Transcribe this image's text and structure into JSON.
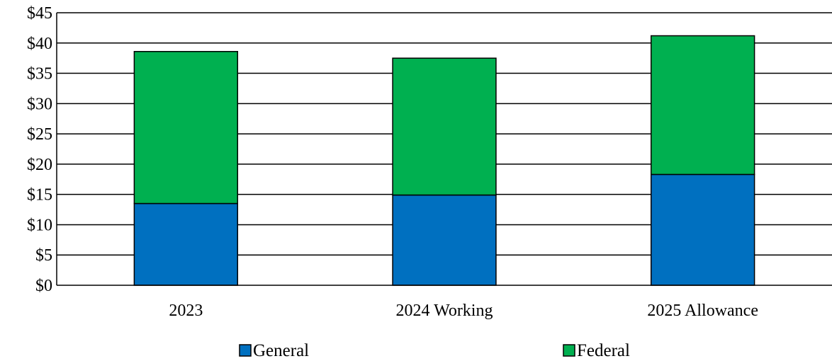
{
  "chart_data": {
    "type": "bar",
    "stacked": true,
    "title": "",
    "xlabel": "",
    "ylabel": "",
    "categories": [
      "2023",
      "2024 Working",
      "2025 Allowance"
    ],
    "series": [
      {
        "name": "General",
        "color": "#0070C0",
        "values": [
          13.5,
          14.9,
          18.3
        ]
      },
      {
        "name": "Federal",
        "color": "#00B050",
        "values": [
          25.1,
          22.6,
          22.9
        ]
      }
    ],
    "ylim": [
      0,
      45
    ],
    "yticks": [
      "$0",
      "$5",
      "$10",
      "$15",
      "$20",
      "$25",
      "$30",
      "$35",
      "$40",
      "$45"
    ],
    "ytick_values": [
      0,
      5,
      10,
      15,
      20,
      25,
      30,
      35,
      40,
      45
    ],
    "grid": true,
    "legend_position": "bottom"
  }
}
